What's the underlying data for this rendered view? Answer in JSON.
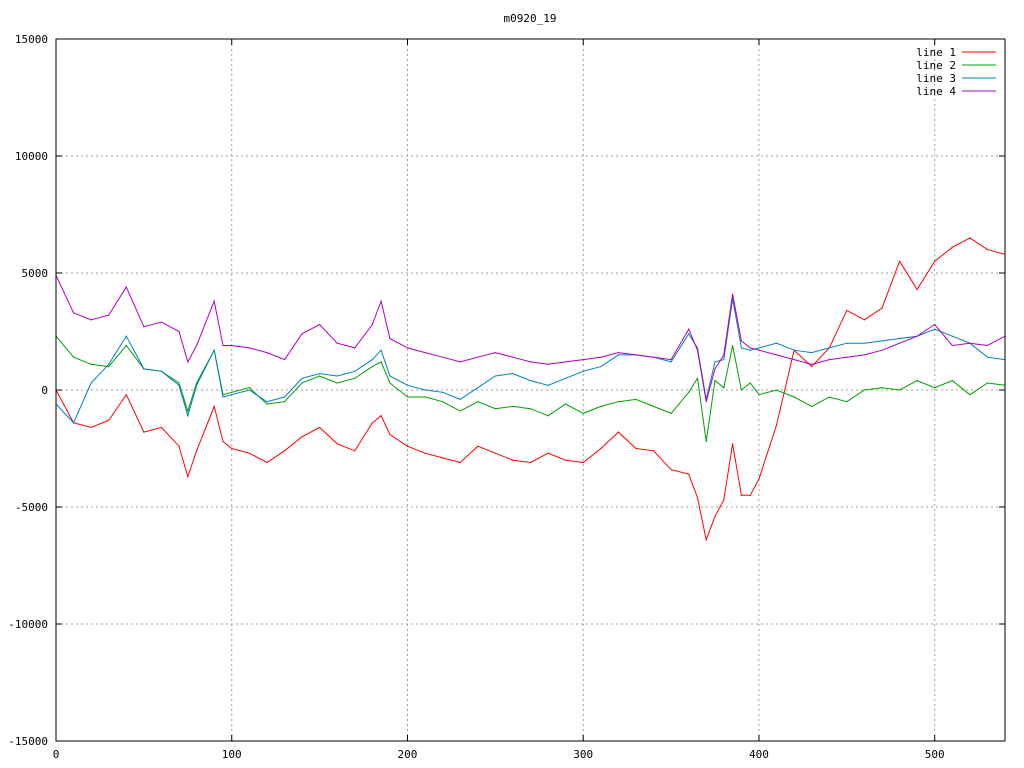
{
  "chart_data": {
    "type": "line",
    "title": "m0920_19",
    "xlabel": "",
    "ylabel": "",
    "xlim": [
      0,
      540
    ],
    "ylim": [
      -15000,
      15000
    ],
    "x_ticks": [
      0,
      100,
      200,
      300,
      400,
      500
    ],
    "y_ticks": [
      -15000,
      -10000,
      -5000,
      0,
      5000,
      10000,
      15000
    ],
    "grid": true,
    "legend_position": "top-right",
    "x": [
      0,
      10,
      20,
      30,
      40,
      50,
      60,
      70,
      75,
      80,
      90,
      95,
      100,
      110,
      120,
      130,
      140,
      150,
      160,
      170,
      180,
      185,
      190,
      200,
      210,
      220,
      230,
      240,
      250,
      260,
      270,
      280,
      290,
      300,
      310,
      320,
      330,
      340,
      350,
      360,
      365,
      370,
      375,
      380,
      385,
      390,
      395,
      400,
      410,
      420,
      430,
      440,
      450,
      460,
      470,
      480,
      490,
      500,
      510,
      520,
      530,
      540
    ],
    "series": [
      {
        "name": "line 1",
        "color": "#ff0000",
        "values": [
          0,
          -1400,
          -1600,
          -1300,
          -200,
          -1800,
          -1600,
          -2400,
          -3700,
          -2600,
          -700,
          -2200,
          -2500,
          -2700,
          -3100,
          -2600,
          -2000,
          -1600,
          -2300,
          -2600,
          -1400,
          -1100,
          -1900,
          -2400,
          -2700,
          -2900,
          -3100,
          -2400,
          -2700,
          -3000,
          -3100,
          -2700,
          -3000,
          -3100,
          -2500,
          -1800,
          -2500,
          -2600,
          -3400,
          -3600,
          -4600,
          -6400,
          -5400,
          -4700,
          -2300,
          -4500,
          -4500,
          -3800,
          -1500,
          1700,
          1000,
          1800,
          3400,
          3000,
          3500,
          5500,
          4300,
          5500,
          6100,
          6500,
          6000,
          5800
        ]
      },
      {
        "name": "line 2",
        "color": "#00a000",
        "values": [
          2300,
          1400,
          1100,
          1000,
          1900,
          900,
          800,
          300,
          -900,
          300,
          1700,
          -200,
          -100,
          100,
          -600,
          -500,
          300,
          600,
          300,
          500,
          1000,
          1200,
          300,
          -300,
          -300,
          -500,
          -900,
          -500,
          -800,
          -700,
          -800,
          -1100,
          -600,
          -1000,
          -700,
          -500,
          -400,
          -700,
          -1000,
          -100,
          500,
          -2200,
          400,
          100,
          1900,
          0,
          300,
          -200,
          0,
          -300,
          -700,
          -300,
          -500,
          0,
          100,
          0,
          400,
          100,
          400,
          -200,
          300,
          200
        ]
      },
      {
        "name": "line 3",
        "color": "#0080c0",
        "values": [
          -600,
          -1400,
          300,
          1100,
          2300,
          900,
          800,
          200,
          -1100,
          200,
          1700,
          -300,
          -200,
          0,
          -500,
          -300,
          500,
          700,
          600,
          800,
          1300,
          1700,
          600,
          200,
          0,
          -100,
          -400,
          100,
          600,
          700,
          400,
          200,
          500,
          800,
          1000,
          1500,
          1500,
          1400,
          1200,
          2400,
          1800,
          -400,
          1200,
          1300,
          3900,
          1800,
          1700,
          1800,
          2000,
          1700,
          1600,
          1800,
          2000,
          2000,
          2100,
          2200,
          2300,
          2600,
          2300,
          2000,
          1400,
          1300
        ]
      },
      {
        "name": "line 4",
        "color": "#b000c0",
        "values": [
          4900,
          3300,
          3000,
          3200,
          4400,
          2700,
          2900,
          2500,
          1200,
          1900,
          3800,
          1900,
          1900,
          1800,
          1600,
          1300,
          2400,
          2800,
          2000,
          1800,
          2800,
          3800,
          2200,
          1800,
          1600,
          1400,
          1200,
          1400,
          1600,
          1400,
          1200,
          1100,
          1200,
          1300,
          1400,
          1600,
          1500,
          1400,
          1300,
          2600,
          1700,
          -500,
          900,
          1500,
          4100,
          2100,
          1800,
          1700,
          1500,
          1300,
          1100,
          1300,
          1400,
          1500,
          1700,
          2000,
          2300,
          2800,
          1900,
          2000,
          1900,
          2300
        ]
      }
    ]
  }
}
